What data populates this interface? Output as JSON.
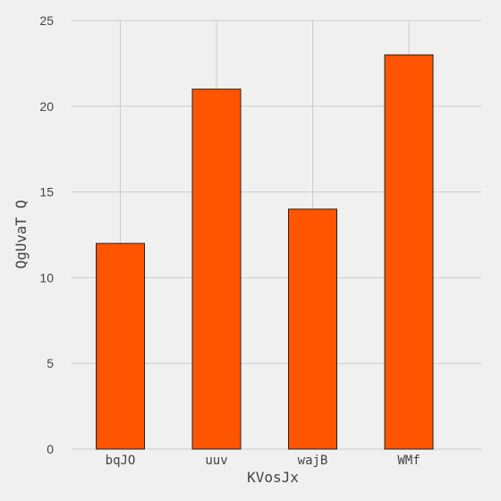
{
  "chart_data": {
    "type": "bar",
    "categories": [
      "bqJO",
      "uuv",
      "wajB",
      "WMf"
    ],
    "values": [
      12,
      21,
      14,
      23
    ],
    "title": "",
    "xlabel": "KVosJx",
    "ylabel": "QgUvaT Q",
    "ylim": [
      0,
      25
    ],
    "yticks": [
      0,
      5,
      10,
      15,
      20,
      25
    ],
    "grid": true,
    "legend": "none",
    "colors": {
      "bar": "#ff5500",
      "bar_edge": "#222222",
      "background": "#f0f0f0",
      "grid": "#cbcbcb"
    }
  }
}
